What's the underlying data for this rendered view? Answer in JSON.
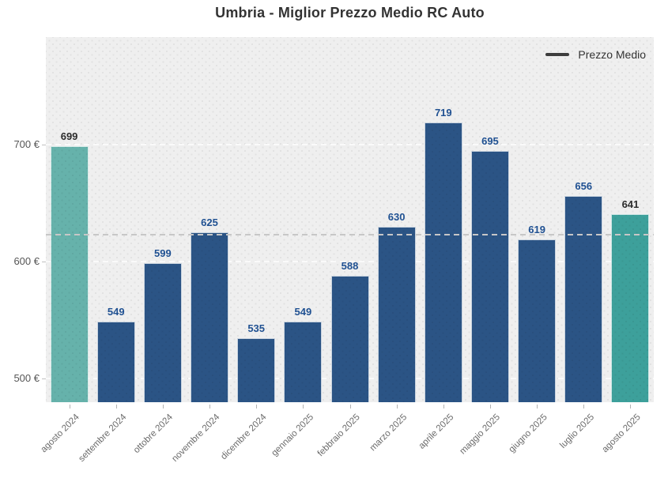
{
  "chart_data": {
    "type": "bar",
    "title": "Umbria - Miglior Prezzo Medio RC Auto",
    "categories": [
      "agosto 2024",
      "settembre 2024",
      "ottobre 2024",
      "novembre 2024",
      "dicembre 2024",
      "gennaio 2025",
      "febbraio 2025",
      "marzo 2025",
      "aprile 2025",
      "maggio 2025",
      "giugno 2025",
      "luglio 2025",
      "agosto 2025"
    ],
    "values": [
      699,
      549,
      599,
      625,
      535,
      549,
      588,
      630,
      719,
      695,
      619,
      656,
      641
    ],
    "bar_colors": [
      "#66b2ab",
      "#2b5485",
      "#2b5485",
      "#2b5485",
      "#2b5485",
      "#2b5485",
      "#2b5485",
      "#2b5485",
      "#2b5485",
      "#2b5485",
      "#2b5485",
      "#2b5485",
      "#3da09b"
    ],
    "value_label_colors": [
      "#2b2b2b",
      "#205192",
      "#205192",
      "#205192",
      "#205192",
      "#205192",
      "#205192",
      "#205192",
      "#205192",
      "#205192",
      "#205192",
      "#205192",
      "#2b2b2b"
    ],
    "y_ticks": [
      {
        "value": 500,
        "label": "500 €"
      },
      {
        "value": 600,
        "label": "600 €"
      },
      {
        "value": 700,
        "label": "700 €"
      }
    ],
    "ylim": [
      480,
      792
    ],
    "average_value": 623.4,
    "average_line_style": "dashed gray horizontal line across plot",
    "grid": "horizontal dashed white lines at y ticks",
    "plot_background": "#efefef",
    "legend": {
      "label": "Prezzo Medio",
      "position": "top-right"
    }
  }
}
